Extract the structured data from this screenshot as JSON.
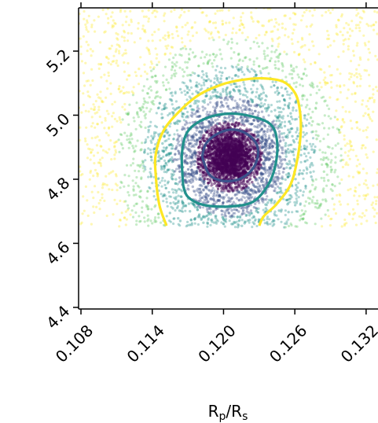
{
  "chart_data": {
    "type": "scatter",
    "title": "",
    "xlabel": "R_p/R_s",
    "xlabel_parts": {
      "main": "R",
      "sub1": "p",
      "mid": "/R",
      "sub2": "s"
    },
    "ylabel": "",
    "xlim": [
      0.1078,
      0.133
    ],
    "ylim": [
      4.395,
      5.335
    ],
    "x_ticks": [
      {
        "value": 0.108,
        "label": "0.108"
      },
      {
        "value": 0.114,
        "label": "0.114"
      },
      {
        "value": 0.12,
        "label": "0.120"
      },
      {
        "value": 0.126,
        "label": "0.126"
      },
      {
        "value": 0.132,
        "label": "0.132"
      }
    ],
    "y_ticks": [
      {
        "value": 4.4,
        "label": "4.4"
      },
      {
        "value": 4.6,
        "label": "4.6"
      },
      {
        "value": 4.8,
        "label": "4.8"
      },
      {
        "value": 5.0,
        "label": "5.0"
      },
      {
        "value": 5.2,
        "label": "5.2"
      }
    ],
    "grid": false,
    "colormap": "viridis",
    "point_cloud": {
      "center": [
        0.1205,
        4.87
      ],
      "sample_region": {
        "x": [
          0.1078,
          0.133
        ],
        "y": [
          4.65,
          5.335
        ]
      },
      "core_spread": [
        0.0012,
        0.045
      ],
      "mid_spread": [
        0.0028,
        0.11
      ],
      "outer_spread": [
        0.0055,
        0.22
      ],
      "colors": {
        "core": "#440154",
        "inner": "#3b528b",
        "mid": "#21918c",
        "outer": "#5ec962",
        "far": "#fde725"
      }
    },
    "contours": [
      {
        "level": "inner",
        "color": "#3b528b",
        "points": [
          [
            0.1182,
            4.87
          ],
          [
            0.1185,
            4.91
          ],
          [
            0.1194,
            4.94
          ],
          [
            0.1206,
            4.955
          ],
          [
            0.1218,
            4.945
          ],
          [
            0.1227,
            4.915
          ],
          [
            0.1229,
            4.875
          ],
          [
            0.1224,
            4.83
          ],
          [
            0.1213,
            4.8
          ],
          [
            0.1199,
            4.795
          ],
          [
            0.1188,
            4.815
          ],
          [
            0.1182,
            4.87
          ]
        ]
      },
      {
        "level": "middle",
        "color": "#21918c",
        "points": [
          [
            0.1166,
            4.78
          ],
          [
            0.1165,
            4.88
          ],
          [
            0.117,
            4.95
          ],
          [
            0.1185,
            4.99
          ],
          [
            0.1205,
            5.005
          ],
          [
            0.1225,
            4.995
          ],
          [
            0.124,
            4.97
          ],
          [
            0.1245,
            4.92
          ],
          [
            0.1244,
            4.85
          ],
          [
            0.1238,
            4.785
          ],
          [
            0.1225,
            4.73
          ],
          [
            0.1205,
            4.715
          ],
          [
            0.1183,
            4.72
          ],
          [
            0.117,
            4.745
          ],
          [
            0.1166,
            4.78
          ]
        ]
      },
      {
        "level": "outer",
        "color": "#fde725",
        "points": [
          [
            0.1152,
            4.655
          ],
          [
            0.1146,
            4.72
          ],
          [
            0.1143,
            4.81
          ],
          [
            0.1143,
            4.88
          ],
          [
            0.115,
            4.955
          ],
          [
            0.1165,
            5.02
          ],
          [
            0.118,
            5.065
          ],
          [
            0.1198,
            5.095
          ],
          [
            0.1215,
            5.11
          ],
          [
            0.1233,
            5.115
          ],
          [
            0.125,
            5.105
          ],
          [
            0.126,
            5.07
          ],
          [
            0.1264,
            5.02
          ],
          [
            0.1265,
            4.95
          ],
          [
            0.1262,
            4.86
          ],
          [
            0.1256,
            4.78
          ],
          [
            0.1244,
            4.72
          ],
          [
            0.1234,
            4.685
          ],
          [
            0.123,
            4.655
          ]
        ]
      }
    ],
    "core_blob_color": "#440154"
  }
}
